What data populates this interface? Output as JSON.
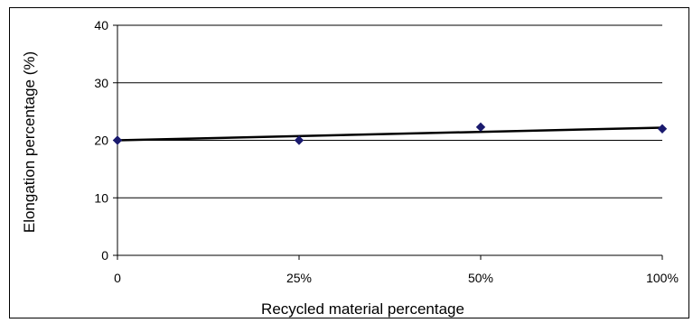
{
  "chart_data": {
    "type": "scatter",
    "title": "",
    "xlabel": "Recycled material percentage",
    "ylabel": "Elongation percentage (%)",
    "categories": [
      "0",
      "25%",
      "50%",
      "100%"
    ],
    "series": [
      {
        "values": [
          20,
          20,
          22.3,
          22
        ]
      }
    ],
    "trendline": {
      "type": "linear",
      "start": 20,
      "end": 22.2
    },
    "ylim": [
      0,
      40
    ],
    "yticks": [
      "0",
      "10",
      "20",
      "30",
      "40"
    ],
    "grid": true,
    "legend": "none",
    "colors": {
      "marker": "#1a1a6e",
      "trendline": "#000000",
      "grid": "#000000",
      "frame": "#000000"
    }
  }
}
